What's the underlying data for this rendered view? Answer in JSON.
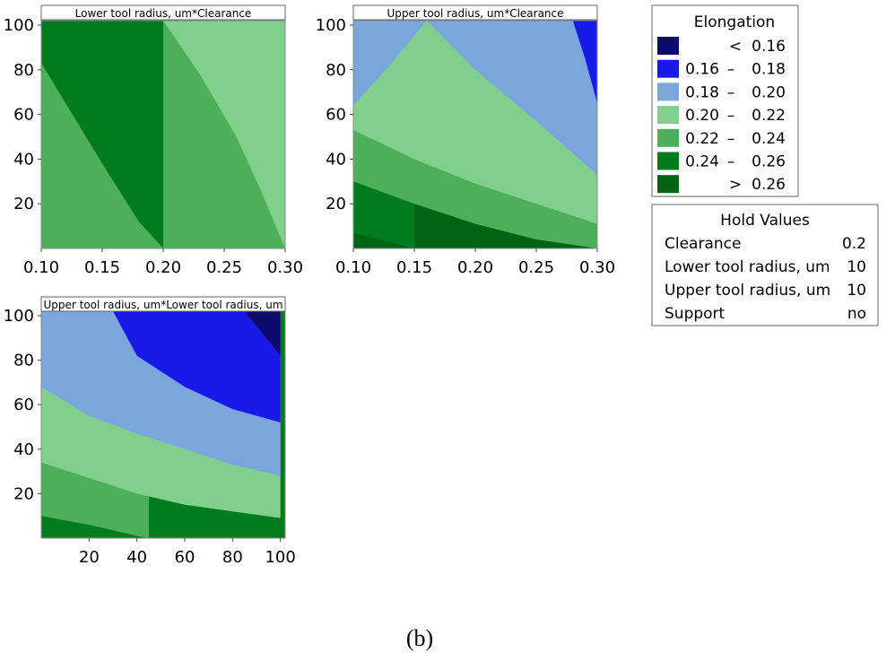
{
  "caption": "(b)",
  "chart_data": {
    "type": "contour",
    "z_name": "Elongation",
    "levels": [
      {
        "label_low": "",
        "op": "<",
        "label_high": "0.16",
        "color": "#0c0c6e"
      },
      {
        "label_low": "0.16",
        "op": "–",
        "label_high": "0.18",
        "color": "#1a1ae6"
      },
      {
        "label_low": "0.18",
        "op": "–",
        "label_high": "0.20",
        "color": "#7ba6db"
      },
      {
        "label_low": "0.20",
        "op": "–",
        "label_high": "0.22",
        "color": "#80cf8c"
      },
      {
        "label_low": "0.22",
        "op": "–",
        "label_high": "0.24",
        "color": "#4daf59"
      },
      {
        "label_low": "0.24",
        "op": "–",
        "label_high": "0.26",
        "color": "#007c1d"
      },
      {
        "label_low": "",
        "op": ">",
        "label_high": "0.26",
        "color": "#006414"
      }
    ],
    "hold_values": {
      "title": "Hold Values",
      "rows": [
        {
          "name": "Clearance",
          "value": "0.2"
        },
        {
          "name": "Lower tool radius, um",
          "value": "10"
        },
        {
          "name": "Upper tool radius, um",
          "value": "10"
        },
        {
          "name": "Support",
          "value": "no"
        }
      ]
    },
    "panels": [
      {
        "title": "Lower tool radius, um*Clearance",
        "xlim": [
          0.1,
          0.3
        ],
        "ylim": [
          0,
          102
        ],
        "xticks": [
          "0.10",
          "0.15",
          "0.20",
          "0.25",
          "0.30"
        ],
        "yticks": [
          "20",
          "40",
          "60",
          "80",
          "100"
        ],
        "region_levels": [
          4,
          5,
          3
        ],
        "boundaries": [
          [
            [
              0.1,
              83
            ],
            [
              0.12,
              65
            ],
            [
              0.15,
              38
            ],
            [
              0.18,
              12
            ],
            [
              0.2,
              0
            ]
          ],
          [
            [
              0.2,
              102
            ],
            [
              0.23,
              78
            ],
            [
              0.26,
              50
            ],
            [
              0.28,
              26
            ],
            [
              0.3,
              0
            ]
          ]
        ]
      },
      {
        "title": "Upper tool radius, um*Clearance",
        "xlim": [
          0.1,
          0.3
        ],
        "ylim": [
          0,
          102
        ],
        "xticks": [
          "0.10",
          "0.15",
          "0.20",
          "0.25",
          "0.30"
        ],
        "yticks": [
          "20",
          "40",
          "60",
          "80",
          "100"
        ],
        "region_levels": [
          6,
          5,
          4,
          3,
          2,
          1
        ],
        "boundaries": [
          [
            [
              0.1,
              7
            ],
            [
              0.15,
              0
            ]
          ],
          [
            [
              0.1,
              30
            ],
            [
              0.15,
              20
            ],
            [
              0.2,
              11
            ],
            [
              0.25,
              4
            ],
            [
              0.3,
              0
            ]
          ],
          [
            [
              0.1,
              53
            ],
            [
              0.15,
              40
            ],
            [
              0.2,
              29
            ],
            [
              0.25,
              20
            ],
            [
              0.3,
              11
            ]
          ],
          [
            [
              0.1,
              64
            ],
            [
              0.13,
              82
            ],
            [
              0.16,
              102
            ],
            [
              0.2,
              80
            ],
            [
              0.25,
              57
            ],
            [
              0.3,
              33
            ]
          ],
          [
            [
              0.28,
              102
            ],
            [
              0.29,
              85
            ],
            [
              0.3,
              65
            ]
          ]
        ]
      },
      {
        "title": "Upper tool radius, um*Lower tool radius, um",
        "xlim": [
          0,
          102
        ],
        "ylim": [
          0,
          102
        ],
        "xticks": [
          "20",
          "40",
          "60",
          "80",
          "100"
        ],
        "yticks": [
          "20",
          "40",
          "60",
          "80",
          "100"
        ],
        "region_levels": [
          5,
          4,
          3,
          2,
          1,
          0
        ],
        "boundaries": [
          [
            [
              0,
              10
            ],
            [
              20,
              6
            ],
            [
              40,
              1
            ],
            [
              45,
              0
            ]
          ],
          [
            [
              0,
              34
            ],
            [
              20,
              27
            ],
            [
              40,
              20
            ],
            [
              60,
              15
            ],
            [
              80,
              12
            ],
            [
              100,
              9
            ]
          ],
          [
            [
              0,
              68
            ],
            [
              20,
              55
            ],
            [
              40,
              47
            ],
            [
              60,
              40
            ],
            [
              80,
              33
            ],
            [
              100,
              28
            ]
          ],
          [
            [
              30,
              102
            ],
            [
              40,
              82
            ],
            [
              60,
              68
            ],
            [
              80,
              58
            ],
            [
              100,
              52
            ]
          ],
          [
            [
              85,
              102
            ],
            [
              100,
              82
            ]
          ]
        ]
      }
    ]
  }
}
